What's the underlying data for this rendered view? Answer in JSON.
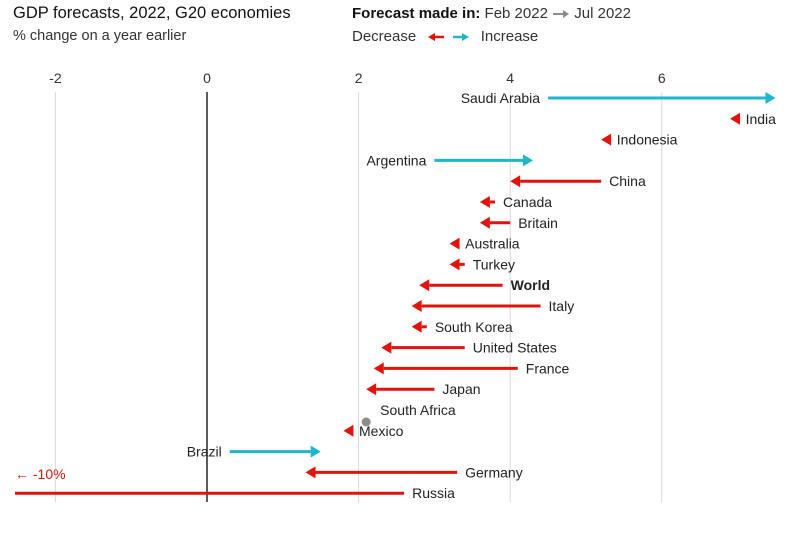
{
  "header": {
    "title": "GDP forecasts, 2022, G20 economies",
    "subtitle": "% change on a year earlier",
    "legend_label": "Forecast made in:",
    "legend_from": "Feb 2022",
    "legend_to": "Jul 2022",
    "decrease_label": "Decrease",
    "increase_label": "Increase"
  },
  "colors": {
    "decrease": "#e3120b",
    "increase": "#1fb6c9",
    "neutral": "#8c8c8c",
    "zero_axis": "#333333",
    "grid": "#d9d9d9"
  },
  "chart_data": {
    "type": "arrow-dumbbell",
    "title": "GDP forecasts, 2022, G20 economies",
    "subtitle": "% change on a year earlier",
    "xlabel": "",
    "ylabel": "",
    "xlim": [
      -2.5,
      7.6
    ],
    "xticks": [
      -2,
      0,
      2,
      4,
      6
    ],
    "xtick_labels": [
      "-2",
      "0",
      "2",
      "4",
      "6"
    ],
    "grid": true,
    "series_names": [
      "Feb 2022",
      "Jul 2022"
    ],
    "rows": [
      {
        "name": "Saudi Arabia",
        "feb": 4.5,
        "jul": 7.5,
        "label_side": "left"
      },
      {
        "name": "India",
        "feb": 7.0,
        "jul": 6.9,
        "label_side": "right"
      },
      {
        "name": "Indonesia",
        "feb": 5.3,
        "jul": 5.2,
        "label_side": "right"
      },
      {
        "name": "Argentina",
        "feb": 3.0,
        "jul": 4.3,
        "label_side": "left"
      },
      {
        "name": "China",
        "feb": 5.2,
        "jul": 4.0,
        "label_side": "right"
      },
      {
        "name": "Canada",
        "feb": 3.8,
        "jul": 3.6,
        "label_side": "right"
      },
      {
        "name": "Britain",
        "feb": 4.0,
        "jul": 3.6,
        "label_side": "right"
      },
      {
        "name": "Australia",
        "feb": 3.3,
        "jul": 3.2,
        "label_side": "right"
      },
      {
        "name": "Turkey",
        "feb": 3.4,
        "jul": 3.2,
        "label_side": "right"
      },
      {
        "name": "World",
        "feb": 3.9,
        "jul": 2.8,
        "label_side": "right",
        "bold": true
      },
      {
        "name": "Italy",
        "feb": 4.4,
        "jul": 2.7,
        "label_side": "right"
      },
      {
        "name": "South Korea",
        "feb": 2.9,
        "jul": 2.7,
        "label_side": "right"
      },
      {
        "name": "United States",
        "feb": 3.4,
        "jul": 2.3,
        "label_side": "right"
      },
      {
        "name": "France",
        "feb": 4.1,
        "jul": 2.2,
        "label_side": "right"
      },
      {
        "name": "Japan",
        "feb": 3.0,
        "jul": 2.1,
        "label_side": "right"
      },
      {
        "name": "South Africa",
        "feb": 2.1,
        "jul": 2.1,
        "label_side": "right"
      },
      {
        "name": "Mexico",
        "feb": 1.9,
        "jul": 1.8,
        "label_side": "right"
      },
      {
        "name": "Brazil",
        "feb": 0.3,
        "jul": 1.5,
        "label_side": "left"
      },
      {
        "name": "Germany",
        "feb": 3.3,
        "jul": 1.3,
        "label_side": "right"
      },
      {
        "name": "Russia",
        "feb": 2.6,
        "jul": -10.0,
        "label_side": "right",
        "truncated": true
      }
    ],
    "annotations": [
      {
        "text": "← -10%",
        "target": "Russia",
        "position": "left-edge"
      }
    ]
  }
}
